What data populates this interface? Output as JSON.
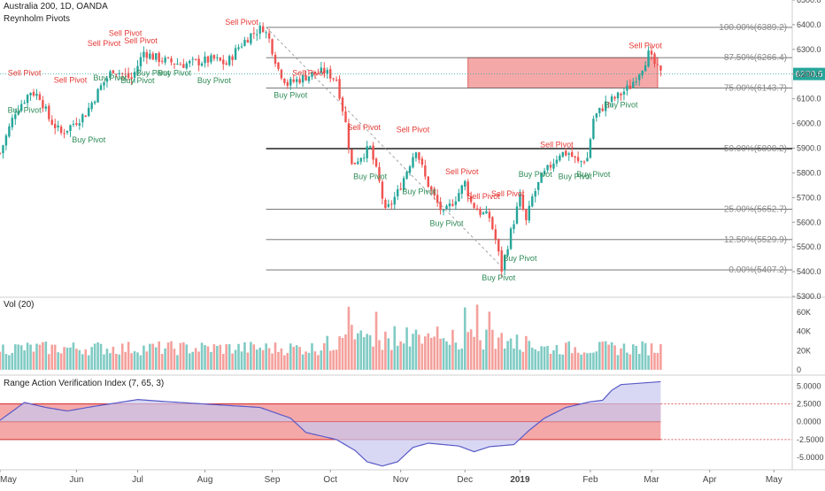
{
  "header": {
    "symbol_line": "Australia 200, 1D, OANDA",
    "indicator_line": "Reynholm Pivots"
  },
  "price_pane": {
    "ylim": [
      5300,
      6500
    ],
    "y_ticks": [
      "6500.0",
      "6400.0",
      "6300.0",
      "6200.0",
      "6100.0",
      "6000.0",
      "5900.0",
      "5800.0",
      "5700.0",
      "5600.0",
      "5500.0",
      "5400.0",
      "5300.0"
    ],
    "last_price_label": "6200.5",
    "fib_levels": [
      {
        "label": "100.00%(6389.2)",
        "value": 6389.2,
        "bold": false
      },
      {
        "label": "87.50%(6266.4)",
        "value": 6266.4,
        "bold": false
      },
      {
        "label": "75.00%(6143.7)",
        "value": 6143.7,
        "bold": false
      },
      {
        "label": "50.00%(5898.2)",
        "value": 5898.2,
        "bold": true
      },
      {
        "label": "25.00%(5652.7)",
        "value": 5652.7,
        "bold": false
      },
      {
        "label": "12.50%(5529.9)",
        "value": 5529.9,
        "bold": false
      },
      {
        "label": "0.00%(5407.2)",
        "value": 5407.2,
        "bold": false
      }
    ],
    "highlight_box": {
      "from_day": 153,
      "to_day": 215,
      "low": 6143.7,
      "high": 6266.4,
      "color": "#f28b8b"
    },
    "trendline": {
      "from": [
        87,
        6389.2
      ],
      "to": [
        165,
        5407.2
      ]
    }
  },
  "volume_pane": {
    "label": "Vol (20)",
    "ylim": [
      0,
      70000
    ],
    "y_ticks": [
      "60K",
      "40K",
      "20K",
      "0"
    ]
  },
  "osc_pane": {
    "label": "Range Action Verification Index (7, 65, 3)",
    "ylim": [
      -6.6,
      6.4
    ],
    "y_ticks": [
      "5.0000",
      "2.5000",
      "0.0000",
      "-2.5000",
      "-5.0000"
    ],
    "band": {
      "upper": 2.5,
      "lower": -2.5
    }
  },
  "x_axis": {
    "months": [
      {
        "label": "May",
        "day": 0
      },
      {
        "label": "Jun",
        "day": 25
      },
      {
        "label": "Jul",
        "day": 45
      },
      {
        "label": "Aug",
        "day": 67
      },
      {
        "label": "Sep",
        "day": 89
      },
      {
        "label": "Oct",
        "day": 108
      },
      {
        "label": "Nov",
        "day": 131
      },
      {
        "label": "Dec",
        "day": 152
      },
      {
        "label": "2019",
        "day": 170
      },
      {
        "label": "Feb",
        "day": 193
      },
      {
        "label": "Mar",
        "day": 213
      },
      {
        "label": "Apr",
        "day": 232
      },
      {
        "label": "May",
        "day": 253
      }
    ]
  },
  "colors": {
    "up": "#26a69a",
    "down": "#ef5350",
    "sell_label": "#e53935",
    "buy_label": "#2e8b57",
    "osc_line": "#5a5ac8",
    "osc_fill": "#c8c8f0",
    "band_fill": "#f28b8b",
    "band_line": "#d32f2f",
    "last_price_bg": "#26a69a"
  },
  "chart_data": {
    "type": "candlestick",
    "title": "Australia 200, 1D, OANDA",
    "price_anchors": [
      [
        0,
        5880
      ],
      [
        5,
        6050
      ],
      [
        10,
        6130
      ],
      [
        13,
        6110
      ],
      [
        16,
        6020
      ],
      [
        20,
        5960
      ],
      [
        25,
        6010
      ],
      [
        28,
        6040
      ],
      [
        33,
        6150
      ],
      [
        37,
        6220
      ],
      [
        40,
        6200
      ],
      [
        43,
        6180
      ],
      [
        47,
        6290
      ],
      [
        50,
        6270
      ],
      [
        55,
        6250
      ],
      [
        60,
        6240
      ],
      [
        65,
        6250
      ],
      [
        70,
        6260
      ],
      [
        74,
        6240
      ],
      [
        78,
        6310
      ],
      [
        82,
        6360
      ],
      [
        86,
        6389
      ],
      [
        88,
        6340
      ],
      [
        91,
        6220
      ],
      [
        94,
        6160
      ],
      [
        98,
        6180
      ],
      [
        102,
        6200
      ],
      [
        106,
        6210
      ],
      [
        110,
        6180
      ],
      [
        113,
        6000
      ],
      [
        115,
        5830
      ],
      [
        118,
        5870
      ],
      [
        121,
        5900
      ],
      [
        124,
        5760
      ],
      [
        126,
        5640
      ],
      [
        130,
        5720
      ],
      [
        134,
        5840
      ],
      [
        136,
        5900
      ],
      [
        139,
        5780
      ],
      [
        142,
        5700
      ],
      [
        145,
        5630
      ],
      [
        149,
        5700
      ],
      [
        152,
        5760
      ],
      [
        154,
        5680
      ],
      [
        157,
        5640
      ],
      [
        160,
        5620
      ],
      [
        162,
        5530
      ],
      [
        164,
        5410
      ],
      [
        167,
        5560
      ],
      [
        170,
        5700
      ],
      [
        172,
        5600
      ],
      [
        174,
        5700
      ],
      [
        177,
        5780
      ],
      [
        180,
        5830
      ],
      [
        183,
        5880
      ],
      [
        186,
        5880
      ],
      [
        189,
        5840
      ],
      [
        192,
        5860
      ],
      [
        194,
        6020
      ],
      [
        198,
        6080
      ],
      [
        202,
        6110
      ],
      [
        206,
        6150
      ],
      [
        210,
        6230
      ],
      [
        212,
        6280
      ],
      [
        214,
        6240
      ],
      [
        216,
        6200
      ]
    ],
    "sell_pivots": [
      [
        8,
        6180
      ],
      [
        23,
        6150
      ],
      [
        34,
        6300
      ],
      [
        41,
        6340
      ],
      [
        46,
        6310
      ],
      [
        79,
        6385
      ],
      [
        101,
        6180
      ],
      [
        119,
        5960
      ],
      [
        135,
        5950
      ],
      [
        151,
        5780
      ],
      [
        158,
        5680
      ],
      [
        166,
        5690
      ],
      [
        182,
        5890
      ],
      [
        211,
        6290
      ]
    ],
    "buy_pivots": [
      [
        8,
        6080
      ],
      [
        29,
        5960
      ],
      [
        36,
        6210
      ],
      [
        45,
        6200
      ],
      [
        50,
        6230
      ],
      [
        57,
        6230
      ],
      [
        70,
        6200
      ],
      [
        95,
        6140
      ],
      [
        121,
        5810
      ],
      [
        137,
        5750
      ],
      [
        146,
        5620
      ],
      [
        163,
        5400
      ],
      [
        170,
        5480
      ],
      [
        175,
        5820
      ],
      [
        188,
        5810
      ],
      [
        194,
        5820
      ],
      [
        203,
        6100
      ]
    ],
    "oscillator_anchors": [
      [
        0,
        0.2
      ],
      [
        8,
        2.7
      ],
      [
        15,
        2.0
      ],
      [
        22,
        1.5
      ],
      [
        30,
        2.1
      ],
      [
        45,
        3.1
      ],
      [
        55,
        2.8
      ],
      [
        70,
        2.4
      ],
      [
        85,
        2.0
      ],
      [
        95,
        0.5
      ],
      [
        100,
        -1.5
      ],
      [
        110,
        -2.5
      ],
      [
        116,
        -4.0
      ],
      [
        120,
        -5.6
      ],
      [
        125,
        -6.2
      ],
      [
        130,
        -5.6
      ],
      [
        135,
        -3.6
      ],
      [
        140,
        -3.0
      ],
      [
        150,
        -3.4
      ],
      [
        155,
        -4.2
      ],
      [
        160,
        -3.5
      ],
      [
        168,
        -3.2
      ],
      [
        173,
        -1.2
      ],
      [
        178,
        0.5
      ],
      [
        185,
        2.0
      ],
      [
        193,
        2.8
      ],
      [
        197,
        3.0
      ],
      [
        200,
        4.4
      ],
      [
        203,
        5.2
      ],
      [
        216,
        5.6
      ]
    ]
  }
}
